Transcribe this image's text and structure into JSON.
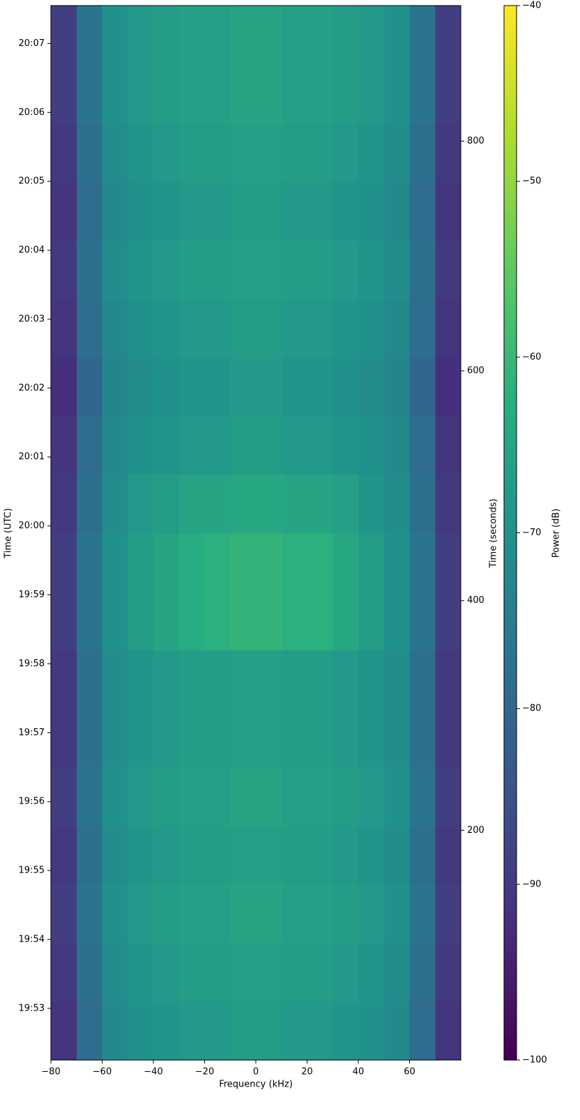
{
  "chart_data": {
    "type": "heatmap",
    "xlabel": "Frequency (kHz)",
    "ylabel": "Time (UTC)",
    "y2label": "Time (seconds)",
    "colorbar_label": "Power (dB)",
    "colormap": "viridis",
    "xbins": [
      -80,
      -70,
      -60,
      -50,
      -40,
      -30,
      -20,
      -10,
      0,
      10,
      20,
      30,
      40,
      50,
      60,
      70,
      80
    ],
    "ybins": [
      0,
      51,
      102,
      153,
      204,
      255,
      306,
      357,
      408,
      459,
      510,
      561,
      612,
      663,
      714,
      765,
      816,
      867,
      918
    ],
    "z": [
      [
        -91,
        -79,
        -72,
        -70,
        -69,
        -68,
        -68,
        -67,
        -67,
        -68,
        -68,
        -69,
        -70,
        -72,
        -79,
        -91
      ],
      [
        -90,
        -78,
        -71,
        -69,
        -68,
        -67,
        -67,
        -66,
        -66,
        -67,
        -67,
        -68,
        -69,
        -71,
        -78,
        -90
      ],
      [
        -89,
        -77,
        -70,
        -68,
        -67,
        -66,
        -66,
        -65,
        -65,
        -66,
        -66,
        -67,
        -68,
        -70,
        -77,
        -89
      ],
      [
        -90,
        -78,
        -71,
        -69,
        -68,
        -67,
        -67,
        -66,
        -66,
        -67,
        -67,
        -68,
        -69,
        -71,
        -78,
        -90
      ],
      [
        -89,
        -77,
        -70,
        -68,
        -67,
        -66,
        -66,
        -65,
        -65,
        -66,
        -66,
        -67,
        -68,
        -70,
        -77,
        -89
      ],
      [
        -90,
        -78,
        -71,
        -69,
        -68,
        -67,
        -67,
        -66,
        -66,
        -67,
        -67,
        -68,
        -69,
        -71,
        -78,
        -90
      ],
      [
        -90,
        -78,
        -71,
        -69,
        -68,
        -67,
        -67,
        -66,
        -66,
        -67,
        -67,
        -68,
        -69,
        -71,
        -78,
        -90
      ],
      [
        -89,
        -77,
        -70,
        -67,
        -65,
        -63,
        -62,
        -61,
        -61,
        -62,
        -62,
        -64,
        -67,
        -70,
        -77,
        -89
      ],
      [
        -89,
        -77,
        -70,
        -67,
        -65,
        -63,
        -62,
        -61,
        -61,
        -62,
        -62,
        -64,
        -67,
        -70,
        -77,
        -89
      ],
      [
        -90,
        -78,
        -71,
        -68,
        -67,
        -65,
        -65,
        -64,
        -64,
        -65,
        -65,
        -66,
        -69,
        -71,
        -78,
        -90
      ],
      [
        -91,
        -79,
        -72,
        -70,
        -69,
        -68,
        -68,
        -67,
        -67,
        -68,
        -68,
        -69,
        -70,
        -72,
        -79,
        -91
      ],
      [
        -92,
        -80,
        -73,
        -71,
        -70,
        -69,
        -69,
        -68,
        -68,
        -69,
        -69,
        -70,
        -71,
        -73,
        -80,
        -92
      ],
      [
        -91,
        -79,
        -72,
        -70,
        -69,
        -68,
        -68,
        -67,
        -67,
        -68,
        -68,
        -69,
        -70,
        -72,
        -79,
        -91
      ],
      [
        -90,
        -78,
        -71,
        -69,
        -68,
        -67,
        -67,
        -66,
        -66,
        -67,
        -67,
        -68,
        -69,
        -71,
        -78,
        -90
      ],
      [
        -91,
        -79,
        -72,
        -70,
        -69,
        -68,
        -68,
        -67,
        -67,
        -68,
        -68,
        -69,
        -70,
        -72,
        -79,
        -91
      ],
      [
        -90,
        -78,
        -71,
        -69,
        -68,
        -67,
        -67,
        -66,
        -66,
        -67,
        -67,
        -68,
        -69,
        -71,
        -78,
        -90
      ],
      [
        -89,
        -77,
        -70,
        -68,
        -67,
        -66,
        -66,
        -65,
        -65,
        -66,
        -66,
        -67,
        -68,
        -70,
        -77,
        -89
      ],
      [
        -89,
        -77,
        -70,
        -68,
        -67,
        -66,
        -66,
        -65,
        -65,
        -66,
        -66,
        -67,
        -68,
        -70,
        -77,
        -89
      ]
    ],
    "xlim": [
      -80,
      80
    ],
    "xticks": [
      {
        "value": -80,
        "label": "−80"
      },
      {
        "value": -60,
        "label": "−60"
      },
      {
        "value": -40,
        "label": "−40"
      },
      {
        "value": -20,
        "label": "−20"
      },
      0,
      20,
      40,
      60
    ],
    "ylim": [
      0,
      918
    ],
    "yticks": [
      {
        "value": 45,
        "label": "19:53"
      },
      {
        "value": 105,
        "label": "19:54"
      },
      {
        "value": 165,
        "label": "19:55"
      },
      {
        "value": 225,
        "label": "19:56"
      },
      {
        "value": 285,
        "label": "19:57"
      },
      {
        "value": 345,
        "label": "19:58"
      },
      {
        "value": 405,
        "label": "19:59"
      },
      {
        "value": 465,
        "label": "20:00"
      },
      {
        "value": 525,
        "label": "20:01"
      },
      {
        "value": 585,
        "label": "20:02"
      },
      {
        "value": 645,
        "label": "20:03"
      },
      {
        "value": 705,
        "label": "20:04"
      },
      {
        "value": 765,
        "label": "20:05"
      },
      {
        "value": 825,
        "label": "20:06"
      },
      {
        "value": 885,
        "label": "20:07"
      }
    ],
    "y2lim": [
      0,
      918
    ],
    "y2ticks": [
      200,
      400,
      600,
      800
    ],
    "clim": [
      -100,
      -40
    ],
    "cticks": [
      {
        "value": -100,
        "label": "−100"
      },
      {
        "value": -90,
        "label": "−90"
      },
      {
        "value": -80,
        "label": "−80"
      },
      {
        "value": -70,
        "label": "−70"
      },
      {
        "value": -60,
        "label": "−60"
      },
      {
        "value": -50,
        "label": "−50"
      },
      {
        "value": -40,
        "label": "−40"
      }
    ]
  }
}
